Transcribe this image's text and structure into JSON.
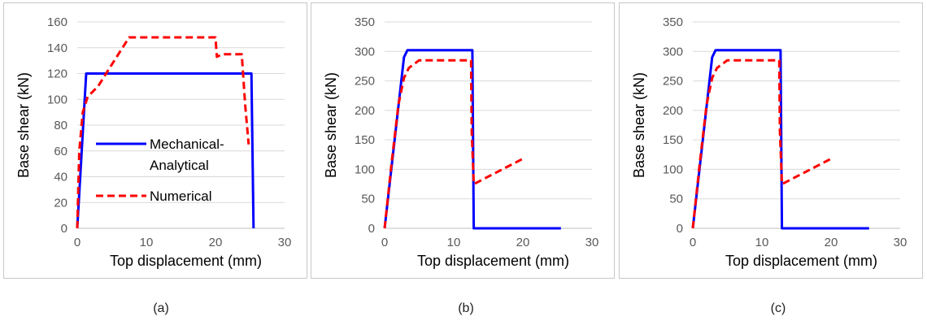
{
  "chart_data": [
    {
      "type": "line",
      "caption": "(a)",
      "xlabel": "Top displacement (mm)",
      "ylabel": "Base shear (kN)",
      "xlim": [
        0,
        30
      ],
      "ylim": [
        0,
        160
      ],
      "xticks": [
        0,
        10,
        20,
        30
      ],
      "yticks": [
        0,
        20,
        40,
        60,
        80,
        100,
        120,
        140,
        160
      ],
      "legend": {
        "position": "center-left",
        "show": true
      },
      "series": [
        {
          "name": "Mechanical-Analytical",
          "color": "#0000ff",
          "style": "solid",
          "x": [
            0,
            1.3,
            25.2,
            25.5
          ],
          "y": [
            0,
            120,
            120,
            0
          ]
        },
        {
          "name": "Numerical",
          "color": "#ff0000",
          "style": "dashed",
          "x": [
            0,
            0.3,
            0.8,
            1.5,
            3,
            5,
            7.5,
            20,
            20.2,
            21,
            23.8,
            24.3,
            24.8
          ],
          "y": [
            0,
            60,
            90,
            102,
            110,
            127,
            148,
            148,
            133,
            135,
            135,
            95,
            65
          ]
        }
      ]
    },
    {
      "type": "line",
      "caption": "(b)",
      "xlabel": "Top displacement (mm)",
      "ylabel": "Base shear (kN)",
      "xlim": [
        0,
        30
      ],
      "ylim": [
        0,
        350
      ],
      "xticks": [
        0,
        10,
        20,
        30
      ],
      "yticks": [
        0,
        50,
        100,
        150,
        200,
        250,
        300,
        350
      ],
      "legend": {
        "show": false
      },
      "series": [
        {
          "color": "#0000ff",
          "style": "solid",
          "x": [
            0,
            2.8,
            3.3,
            12.7,
            12.9,
            25.5
          ],
          "y": [
            0,
            290,
            302,
            302,
            0,
            0
          ]
        },
        {
          "color": "#ff0000",
          "style": "dashed",
          "x": [
            0,
            1,
            2,
            2.8,
            3.5,
            5,
            12.5,
            12.6,
            12.9,
            20
          ],
          "y": [
            0,
            110,
            210,
            255,
            272,
            285,
            285,
            165,
            75,
            118
          ]
        }
      ]
    },
    {
      "type": "line",
      "caption": "(c)",
      "xlabel": "Top displacement (mm)",
      "ylabel": "Base shear (kN)",
      "xlim": [
        0,
        30
      ],
      "ylim": [
        0,
        350
      ],
      "xticks": [
        0,
        10,
        20,
        30
      ],
      "yticks": [
        0,
        50,
        100,
        150,
        200,
        250,
        300,
        350
      ],
      "legend": {
        "show": false
      },
      "series": [
        {
          "color": "#0000ff",
          "style": "solid",
          "x": [
            0,
            2.8,
            3.3,
            12.7,
            12.9,
            25.5
          ],
          "y": [
            0,
            290,
            302,
            302,
            0,
            0
          ]
        },
        {
          "color": "#ff0000",
          "style": "dashed",
          "x": [
            0,
            1,
            2,
            2.8,
            3.5,
            5,
            12.5,
            12.6,
            12.9,
            20
          ],
          "y": [
            0,
            110,
            210,
            255,
            272,
            285,
            285,
            165,
            75,
            118
          ]
        }
      ]
    }
  ]
}
